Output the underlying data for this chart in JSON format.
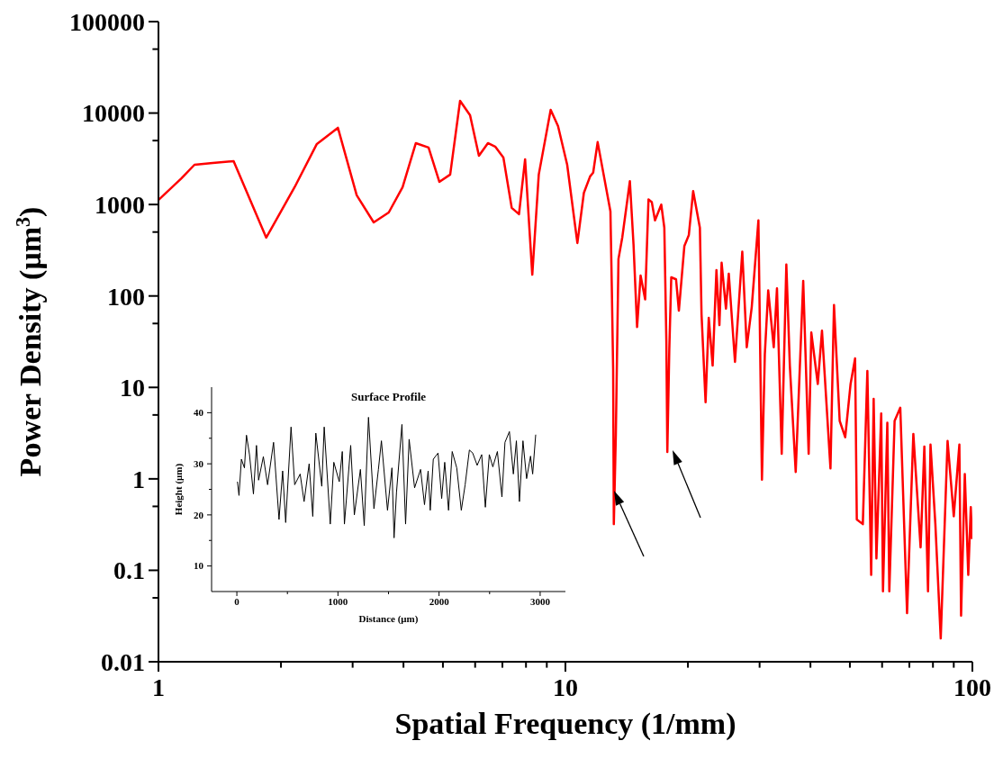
{
  "chart_data": [
    {
      "type": "line",
      "xlabel": "Spatial Frequency (1/mm)",
      "ylabel": "Power Density (μm$^{3}$)",
      "log": "xy",
      "color": "#ff0000",
      "xlim": [
        1,
        100
      ],
      "ylim": [
        0.01,
        100000
      ],
      "xticks": [
        1,
        {
          "value": 2,
          "label": null
        },
        {
          "value": 3,
          "label": null
        },
        {
          "value": 4,
          "label": null
        },
        {
          "value": 5,
          "label": null
        },
        {
          "value": 6,
          "label": null
        },
        {
          "value": 7,
          "label": null
        },
        {
          "value": 8,
          "label": null
        },
        {
          "value": 9,
          "label": null
        },
        10,
        {
          "value": 20,
          "label": null
        },
        {
          "value": 30,
          "label": null
        },
        {
          "value": 40,
          "label": null
        },
        {
          "value": 50,
          "label": null
        },
        {
          "value": 60,
          "label": null
        },
        {
          "value": 70,
          "label": null
        },
        {
          "value": 80,
          "label": null
        },
        {
          "value": 90,
          "label": null
        },
        100
      ],
      "yticks": [
        0.01,
        {
          "value": 0.05,
          "label": null
        },
        0.1,
        {
          "value": 0.5,
          "label": null
        },
        1,
        {
          "value": 5,
          "label": null
        },
        10,
        {
          "value": 50,
          "label": null
        },
        100,
        {
          "value": 500,
          "label": null
        },
        1000,
        {
          "value": 5000,
          "label": null
        },
        10000,
        {
          "value": 50000,
          "label": null
        },
        100000
      ],
      "x": [
        1,
        1.14,
        1.226,
        1.36,
        1.53,
        1.84,
        2.16,
        2.45,
        2.76,
        3.07,
        3.38,
        3.68,
        3.98,
        4.29,
        4.61,
        4.9,
        5.21,
        5.51,
        5.83,
        6.13,
        6.45,
        6.72,
        7.04,
        7.38,
        7.69,
        7.96,
        8.29,
        8.6,
        9.2,
        9.59,
        10.1,
        10.7,
        11.1,
        11.5,
        11.7,
        12.0,
        12.9,
        13.0,
        13.1,
        13.15,
        13.3,
        13.5,
        13.8,
        14.4,
        14.7,
        15.0,
        15.3,
        15.7,
        16.0,
        16.3,
        16.6,
        17.2,
        17.5,
        17.7,
        17.8,
        18.0,
        18.2,
        18.7,
        19.0,
        19.6,
        20.1,
        20.6,
        21.4,
        21.6,
        22.1,
        22.5,
        23.0,
        23.5,
        23.9,
        24.2,
        24.8,
        25.2,
        26.1,
        27.2,
        27.9,
        28.7,
        29.8,
        30.4,
        30.9,
        31.5,
        32.5,
        33.1,
        34.0,
        34.9,
        35.6,
        36.8,
        38.4,
        39.6,
        40.2,
        41.7,
        42.7,
        44.8,
        45.7,
        47.2,
        48.7,
        50.2,
        51.5,
        52.0,
        53.8,
        55.2,
        56.4,
        57.2,
        58.1,
        59.7,
        60.3,
        61.8,
        62.5,
        64.4,
        66.5,
        69.1,
        71.6,
        74.6,
        76.2,
        77.8,
        78.9,
        81.1,
        83.6,
        86.9,
        90.0,
        92.9,
        93.8,
        95.8,
        97.7,
        99.1,
        99.8
      ],
      "values": [
        1120,
        1940,
        2720,
        2850,
        2980,
        434,
        1545,
        4590,
        6900,
        1260,
        638,
        818,
        1545,
        4690,
        4190,
        1770,
        2125,
        13600,
        9460,
        3410,
        4690,
        4300,
        3265,
        918,
        784,
        3120,
        171,
        2125,
        10840,
        7210,
        2720,
        379,
        1340,
        2030,
        2230,
        4810,
        843,
        127,
        15.8,
        0.32,
        2.98,
        254,
        442,
        1800,
        367,
        45.8,
        167,
        91.6,
        1135,
        1064,
        670,
        998,
        556,
        33,
        1.97,
        26.3,
        160,
        152,
        69,
        351,
        463,
        1400,
        556,
        63,
        6.9,
        57.7,
        17.3,
        192,
        48,
        231,
        72.6,
        175,
        19,
        305,
        27.5,
        76,
        670,
        0.98,
        22.9,
        115,
        27.5,
        121,
        1.88,
        221,
        17.3,
        1.19,
        146,
        1.88,
        39.8,
        10.9,
        41.7,
        1.3,
        79.8,
        4.3,
        2.85,
        10.9,
        20.8,
        0.36,
        0.32,
        15.1,
        0.089,
        7.5,
        0.135,
        5.2,
        0.059,
        4.1,
        0.059,
        4.3,
        6.0,
        0.034,
        3.1,
        0.178,
        2.26,
        0.059,
        2.37,
        0.32,
        0.018,
        2.6,
        0.39,
        2.37,
        0.032,
        1.13,
        0.089,
        0.49,
        0.22
      ]
    },
    {
      "type": "line",
      "title": "Surface Profile",
      "xlabel": "Distance (μm)",
      "ylabel": "Height (μm)",
      "color": "#000000",
      "xlim": [
        -250,
        3250
      ],
      "ylim": [
        5,
        45
      ],
      "xticks": [
        0,
        {
          "value": 500,
          "label": null
        },
        1000,
        {
          "value": 1500,
          "label": null
        },
        2000,
        {
          "value": 2500,
          "label": null
        },
        3000
      ],
      "yticks": [
        10,
        {
          "value": 15,
          "label": null
        },
        20,
        {
          "value": 25,
          "label": null
        },
        30,
        {
          "value": 35,
          "label": null
        },
        40
      ],
      "x": [
        6,
        21,
        45,
        75,
        95,
        125,
        164,
        194,
        215,
        262,
        304,
        363,
        417,
        453,
        483,
        536,
        572,
        626,
        665,
        715,
        751,
        781,
        840,
        864,
        924,
        959,
        1013,
        1043,
        1064,
        1126,
        1162,
        1222,
        1260,
        1302,
        1356,
        1400,
        1430,
        1490,
        1534,
        1555,
        1579,
        1633,
        1669,
        1704,
        1758,
        1817,
        1856,
        1892,
        1913,
        1943,
        1990,
        2026,
        2056,
        2094,
        2130,
        2175,
        2220,
        2258,
        2300,
        2333,
        2377,
        2422,
        2458,
        2497,
        2532,
        2577,
        2622,
        2652,
        2696,
        2735,
        2765,
        2795,
        2830,
        2866,
        2905,
        2926,
        2956
      ],
      "values": [
        26.5,
        23.8,
        30.9,
        29.2,
        35.6,
        31.8,
        24.1,
        33.6,
        26.8,
        31.4,
        25.9,
        34.2,
        19.1,
        28.6,
        18.5,
        37.2,
        25.9,
        28.0,
        22.6,
        30.0,
        19.7,
        36.0,
        25.6,
        37.2,
        18.2,
        30.3,
        26.5,
        32.4,
        18.2,
        33.6,
        20.0,
        28.9,
        17.9,
        39.1,
        21.2,
        28.9,
        34.5,
        20.9,
        29.2,
        15.5,
        24.4,
        37.7,
        18.2,
        34.8,
        25.3,
        28.9,
        22.0,
        28.6,
        20.9,
        30.9,
        32.1,
        23.2,
        30.3,
        20.9,
        32.4,
        29.2,
        20.9,
        25.9,
        32.7,
        32.1,
        29.7,
        31.8,
        21.5,
        31.8,
        29.4,
        32.4,
        23.5,
        34.2,
        36.3,
        28.0,
        34.5,
        22.6,
        34.5,
        27.1,
        31.5,
        28.0,
        35.7
      ]
    }
  ]
}
